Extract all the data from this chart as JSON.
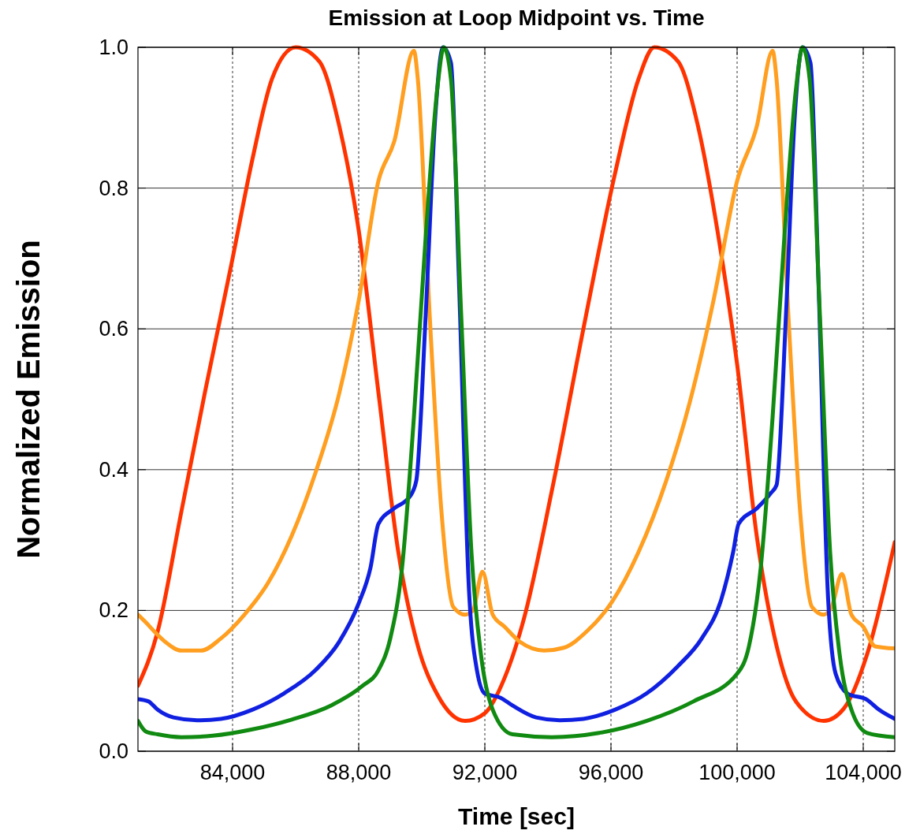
{
  "chart_data": {
    "type": "line",
    "title": "Emission at Loop Midpoint vs. Time",
    "xlabel": "Time [sec]",
    "ylabel": "Normalized Emission",
    "xlim": [
      81000,
      105000
    ],
    "ylim": [
      0,
      1
    ],
    "xticks": [
      {
        "value": 84000,
        "label": "84,000"
      },
      {
        "value": 88000,
        "label": "88,000"
      },
      {
        "value": 92000,
        "label": "92,000"
      },
      {
        "value": 96000,
        "label": "96,000"
      },
      {
        "value": 100000,
        "label": "100,000"
      },
      {
        "value": 104000,
        "label": "104,000"
      }
    ],
    "yticks": [
      {
        "value": 0,
        "label": "0.0"
      },
      {
        "value": 0.2,
        "label": "0.2"
      },
      {
        "value": 0.4,
        "label": "0.4"
      },
      {
        "value": 0.6,
        "label": "0.6"
      },
      {
        "value": 0.8,
        "label": "0.8"
      },
      {
        "value": 1,
        "label": "1.0"
      }
    ],
    "grid": true,
    "line_style": "solid",
    "series": [
      {
        "color": "#ff3300",
        "x": [
          81000,
          81625,
          82375,
          83125,
          84000,
          84625,
          85250,
          86000,
          86750,
          87375,
          88000,
          88625,
          89250,
          89875,
          90500,
          91375,
          92000,
          92625,
          93250,
          94125,
          95125,
          96125,
          96875,
          97375,
          98125,
          98750,
          99375,
          100000,
          100625,
          101250,
          101875,
          102750,
          103375,
          104125,
          105000
        ],
        "values": [
          0.093,
          0.17,
          0.34,
          0.51,
          0.7,
          0.84,
          0.955,
          1.0,
          0.98,
          0.89,
          0.74,
          0.51,
          0.285,
          0.15,
          0.08,
          0.043,
          0.054,
          0.104,
          0.19,
          0.37,
          0.6,
          0.82,
          0.955,
          1.0,
          0.98,
          0.89,
          0.74,
          0.55,
          0.305,
          0.15,
          0.07,
          0.043,
          0.06,
          0.138,
          0.297
        ]
      },
      {
        "color": "#ff9e1f",
        "x": [
          81000,
          81250,
          81500,
          81875,
          82375,
          83000,
          83625,
          84375,
          85125,
          85875,
          86625,
          87375,
          88000,
          88625,
          89125,
          89750,
          89875,
          90250,
          90625,
          91000,
          91375,
          91625,
          91925,
          92250,
          92625,
          93125,
          93875,
          94500,
          95250,
          96000,
          96875,
          97750,
          98500,
          99250,
          100000,
          100625,
          101125,
          101250,
          101625,
          102000,
          102375,
          102750,
          103000,
          103325,
          103625,
          104000,
          104375,
          105000
        ],
        "values": [
          0.194,
          0.183,
          0.171,
          0.155,
          0.143,
          0.143,
          0.16,
          0.194,
          0.239,
          0.306,
          0.395,
          0.507,
          0.64,
          0.81,
          0.866,
          0.995,
          0.955,
          0.62,
          0.34,
          0.205,
          0.194,
          0.2,
          0.255,
          0.194,
          0.177,
          0.155,
          0.143,
          0.147,
          0.171,
          0.21,
          0.283,
          0.384,
          0.496,
          0.64,
          0.81,
          0.888,
          0.995,
          0.955,
          0.62,
          0.34,
          0.205,
          0.194,
          0.205,
          0.252,
          0.194,
          0.177,
          0.149,
          0.146
        ]
      },
      {
        "color": "#1020e0",
        "x": [
          81000,
          81325,
          81625,
          82125,
          82875,
          83625,
          84625,
          85625,
          86625,
          87375,
          88000,
          88375,
          88625,
          89125,
          89625,
          89825,
          90125,
          90425,
          90675,
          90925,
          91175,
          91500,
          91750,
          92000,
          92500,
          92875,
          93625,
          94375,
          95125,
          96125,
          97125,
          98125,
          98875,
          99500,
          99875,
          100050,
          100625,
          101075,
          101250,
          101550,
          101825,
          102075,
          102325,
          102575,
          102875,
          103125,
          103500,
          104125,
          104500,
          105000
        ],
        "values": [
          0.074,
          0.071,
          0.059,
          0.048,
          0.044,
          0.046,
          0.059,
          0.082,
          0.115,
          0.155,
          0.21,
          0.261,
          0.323,
          0.345,
          0.362,
          0.384,
          0.62,
          0.9,
          1.0,
          0.978,
          0.675,
          0.227,
          0.115,
          0.082,
          0.076,
          0.065,
          0.048,
          0.044,
          0.046,
          0.059,
          0.082,
          0.121,
          0.16,
          0.216,
          0.283,
          0.323,
          0.345,
          0.367,
          0.378,
          0.62,
          0.9,
          1.0,
          0.978,
          0.675,
          0.227,
          0.11,
          0.082,
          0.073,
          0.059,
          0.046
        ]
      },
      {
        "color": "#108a10",
        "x": [
          81000,
          81250,
          81625,
          82375,
          83375,
          84625,
          85875,
          87125,
          88125,
          88625,
          89000,
          89375,
          89750,
          90125,
          90500,
          90700,
          90925,
          91250,
          91575,
          91875,
          92250,
          92875,
          94125,
          95625,
          97125,
          98625,
          100000,
          100375,
          100750,
          101125,
          101500,
          101875,
          102075,
          102300,
          102625,
          102950,
          103250,
          103625,
          104125,
          105000
        ],
        "values": [
          0.043,
          0.028,
          0.024,
          0.02,
          0.022,
          0.031,
          0.045,
          0.065,
          0.093,
          0.115,
          0.16,
          0.261,
          0.474,
          0.731,
          0.944,
          1.0,
          0.955,
          0.62,
          0.283,
          0.138,
          0.059,
          0.024,
          0.02,
          0.026,
          0.043,
          0.071,
          0.11,
          0.149,
          0.261,
          0.474,
          0.731,
          0.944,
          1.0,
          0.955,
          0.62,
          0.283,
          0.138,
          0.059,
          0.026,
          0.02
        ]
      }
    ]
  }
}
